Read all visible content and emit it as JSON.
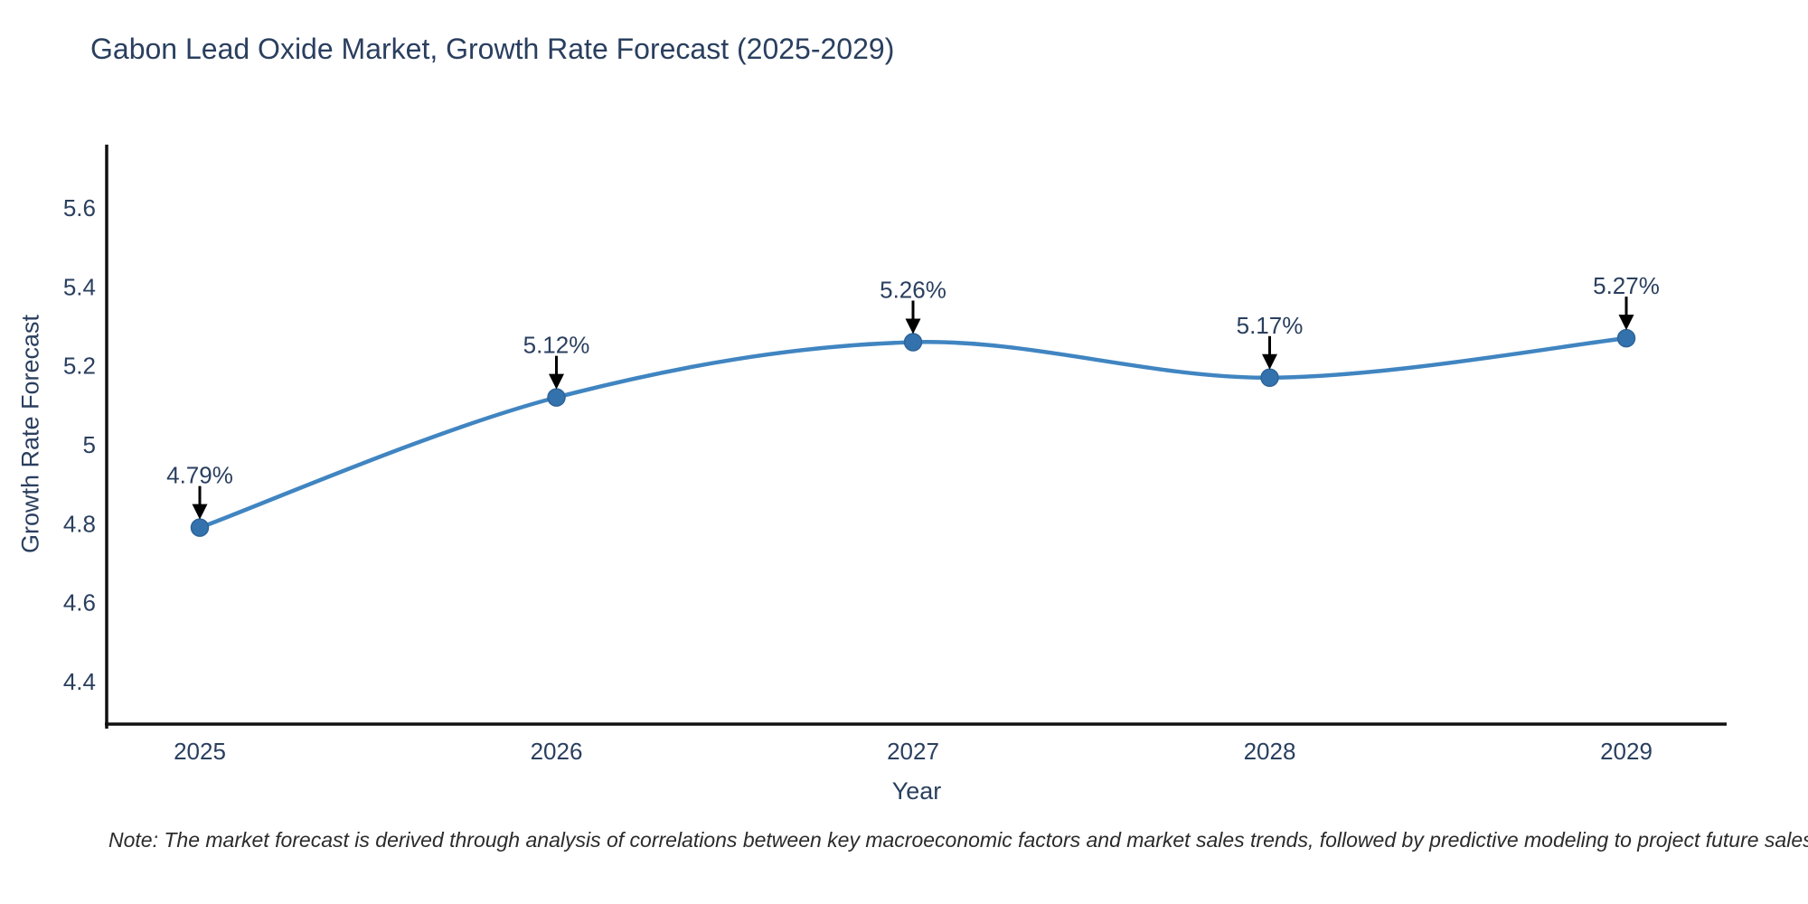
{
  "title": "Gabon Lead Oxide Market, Growth Rate Forecast (2025-2029)",
  "note": "Note: The market forecast is derived through analysis of correlations between key macroeconomic factors and market sales trends, followed by predictive modeling to project future sales",
  "colors": {
    "line": "#4085c1",
    "marker": "#3472ae",
    "marker_edge": "#2e6497",
    "axis_line": "#111111",
    "text": "#2a3f5f",
    "annotation_arrow": "#000000",
    "note_text": "#2b2b2b",
    "background": "#ffffff"
  },
  "chart_data": {
    "type": "line",
    "title": "Gabon Lead Oxide Market, Growth Rate Forecast (2025-2029)",
    "x": [
      2025,
      2026,
      2027,
      2028,
      2029
    ],
    "values": [
      4.79,
      5.12,
      5.26,
      5.17,
      5.27
    ],
    "point_labels": [
      "4.79%",
      "5.12%",
      "5.26%",
      "5.17%",
      "5.27%"
    ],
    "xlabel": "Year",
    "ylabel": "Growth Rate Forecast",
    "x_tick_labels": [
      "2025",
      "2026",
      "2027",
      "2028",
      "2029"
    ],
    "y_ticks": [
      4.4,
      4.6,
      4.8,
      5.0,
      5.2,
      5.4,
      5.6
    ],
    "xlim": [
      2024.74,
      2029.28
    ],
    "ylim": [
      4.29,
      5.76
    ],
    "grid": false,
    "legend": "none",
    "line_style": "smooth-spline",
    "marker": "circle",
    "annotation_style": "value-label-with-down-arrow"
  }
}
